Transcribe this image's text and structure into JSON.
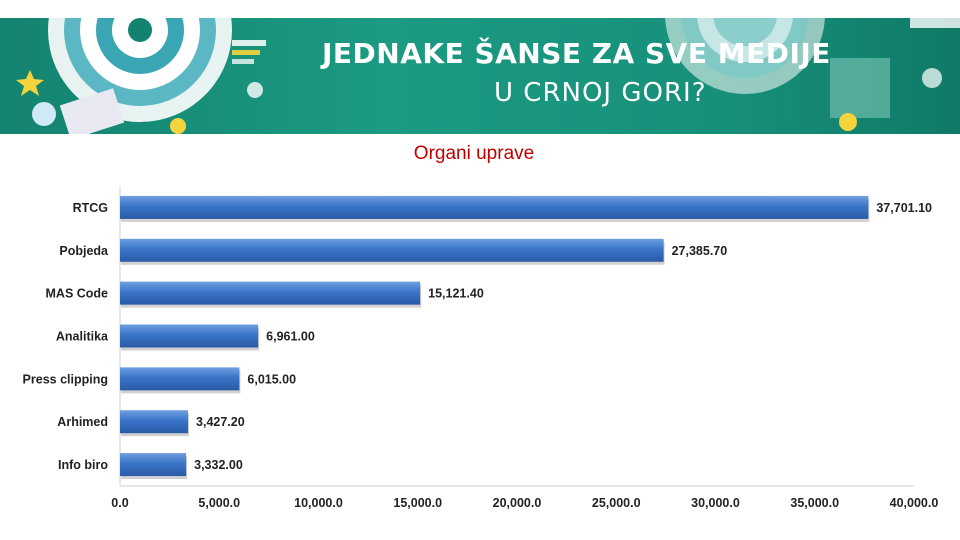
{
  "banner": {
    "title": "JEDNAKE ŠANSE ZA SVE MEDIJE",
    "subtitle": "U CRNOJ GORI?"
  },
  "colors": {
    "banner": "#17907a",
    "bar": "#3a75c8",
    "title": "#c00000"
  },
  "chart_data": {
    "type": "bar",
    "orientation": "horizontal",
    "title": "Organi uprave",
    "categories": [
      "RTCG",
      "Pobjeda",
      "MAS Code",
      "Analitika",
      "Press clipping",
      "Arhimed",
      "Info biro"
    ],
    "values": [
      37701.1,
      27385.7,
      15121.4,
      6961.0,
      6015.0,
      3427.2,
      3332.0
    ],
    "value_labels": [
      "37,701.10",
      "27,385.70",
      "15,121.40",
      "6,961.00",
      "6,015.00",
      "3,427.20",
      "3,332.00"
    ],
    "xlim": [
      0,
      40000
    ],
    "x_ticks": [
      0,
      5000,
      10000,
      15000,
      20000,
      25000,
      30000,
      35000,
      40000
    ],
    "x_tick_labels": [
      "0.0",
      "5,000.0",
      "10,000.0",
      "15,000.0",
      "20,000.0",
      "25,000.0",
      "30,000.0",
      "35,000.0",
      "40,000.0"
    ],
    "grid": false,
    "legend": false
  }
}
